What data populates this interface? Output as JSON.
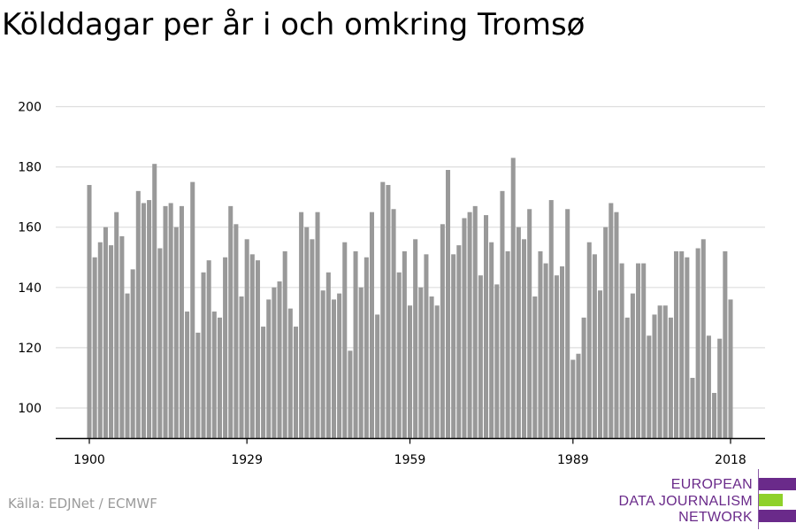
{
  "title": "Kölddagar per år i och omkring Tromsø",
  "source": "Källa: EDJNet / ECMWF",
  "logo": {
    "lines": [
      "EUROPEAN",
      "DATA JOURNALISM",
      "NETWORK"
    ],
    "colors": {
      "purple": "#6a2a8a",
      "green": "#8fd12a"
    }
  },
  "colors": {
    "bar": "#999999",
    "grid": "#dddddd",
    "axis": "#000000"
  },
  "chart_data": {
    "type": "bar",
    "title": "Kölddagar per år i och omkring Tromsø",
    "xlabel": "",
    "ylabel": "",
    "ylim": [
      90,
      200
    ],
    "yticks": [
      100,
      120,
      140,
      160,
      180,
      200
    ],
    "xticks": [
      1900,
      1929,
      1959,
      1989,
      2018
    ],
    "grid": true,
    "x_start": 1900,
    "x_end": 2018,
    "x": [
      1900,
      1901,
      1902,
      1903,
      1904,
      1905,
      1906,
      1907,
      1908,
      1909,
      1910,
      1911,
      1912,
      1913,
      1914,
      1915,
      1916,
      1917,
      1918,
      1919,
      1920,
      1921,
      1922,
      1923,
      1924,
      1925,
      1926,
      1927,
      1928,
      1929,
      1930,
      1931,
      1932,
      1933,
      1934,
      1935,
      1936,
      1937,
      1938,
      1939,
      1940,
      1941,
      1942,
      1943,
      1944,
      1945,
      1946,
      1947,
      1948,
      1949,
      1950,
      1951,
      1952,
      1953,
      1954,
      1955,
      1956,
      1957,
      1958,
      1959,
      1960,
      1961,
      1962,
      1963,
      1964,
      1965,
      1966,
      1967,
      1968,
      1969,
      1970,
      1971,
      1972,
      1973,
      1974,
      1975,
      1976,
      1977,
      1978,
      1979,
      1980,
      1981,
      1982,
      1983,
      1984,
      1985,
      1986,
      1987,
      1988,
      1989,
      1990,
      1991,
      1992,
      1993,
      1994,
      1995,
      1996,
      1997,
      1998,
      1999,
      2000,
      2001,
      2002,
      2003,
      2004,
      2005,
      2006,
      2007,
      2008,
      2009,
      2010,
      2011,
      2012,
      2013,
      2014,
      2015,
      2016,
      2017,
      2018
    ],
    "values": [
      174,
      150,
      155,
      160,
      154,
      165,
      157,
      138,
      146,
      172,
      168,
      169,
      181,
      153,
      167,
      168,
      160,
      167,
      132,
      175,
      125,
      145,
      149,
      132,
      130,
      150,
      167,
      161,
      137,
      156,
      151,
      149,
      127,
      136,
      140,
      142,
      152,
      133,
      127,
      165,
      160,
      156,
      165,
      139,
      145,
      136,
      138,
      155,
      119,
      152,
      140,
      150,
      165,
      131,
      175,
      174,
      166,
      145,
      152,
      134,
      156,
      140,
      151,
      137,
      134,
      161,
      179,
      151,
      154,
      163,
      165,
      167,
      144,
      164,
      155,
      141,
      172,
      152,
      183,
      160,
      156,
      166,
      137,
      152,
      148,
      169,
      144,
      147,
      166,
      116,
      118,
      130,
      155,
      151,
      139,
      160,
      168,
      165,
      148,
      130,
      138,
      148,
      148,
      124,
      131,
      134,
      134,
      130,
      152,
      152,
      150,
      110,
      153,
      156,
      124,
      105,
      123,
      152,
      136
    ]
  }
}
